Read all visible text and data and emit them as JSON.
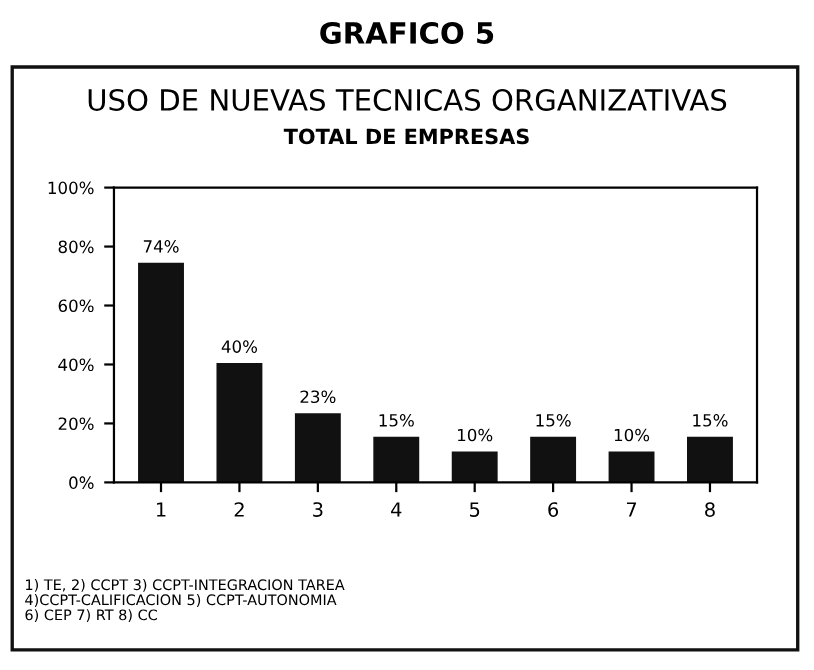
{
  "chart_data": {
    "type": "bar",
    "title": "USO DE NUEVAS TECNICAS ORGANIZATIVAS",
    "subtitle": "TOTAL DE EMPRESAS",
    "annotations": [
      "GRAFICO 5",
      "1) TE, 2) CCPT 3) CCPT-INTEGRACION TAREA\n4)CCPT-CALIFICACION 5) CCPT-AUTONOMIA\n6) CEP 7) RT 8) CC"
    ],
    "categories": [
      "1",
      "2",
      "3",
      "4",
      "5",
      "6",
      "7",
      "8"
    ],
    "values": [
      74,
      40,
      23,
      15,
      10,
      15,
      10,
      15
    ],
    "value_labels": [
      "74%",
      "40%",
      "23%",
      "15%",
      "10%",
      "15%",
      "10%",
      "15%"
    ],
    "color": "#111111",
    "ylim": [
      0,
      100
    ],
    "yticks": [
      {
        "value": 0,
        "label": "0%"
      },
      {
        "value": 20,
        "label": "20%"
      },
      {
        "value": 40,
        "label": "40%"
      },
      {
        "value": 60,
        "label": "60%"
      },
      {
        "value": 80,
        "label": "80%"
      },
      {
        "value": 100,
        "label": "100%"
      }
    ],
    "grid": false,
    "legend": false
  }
}
